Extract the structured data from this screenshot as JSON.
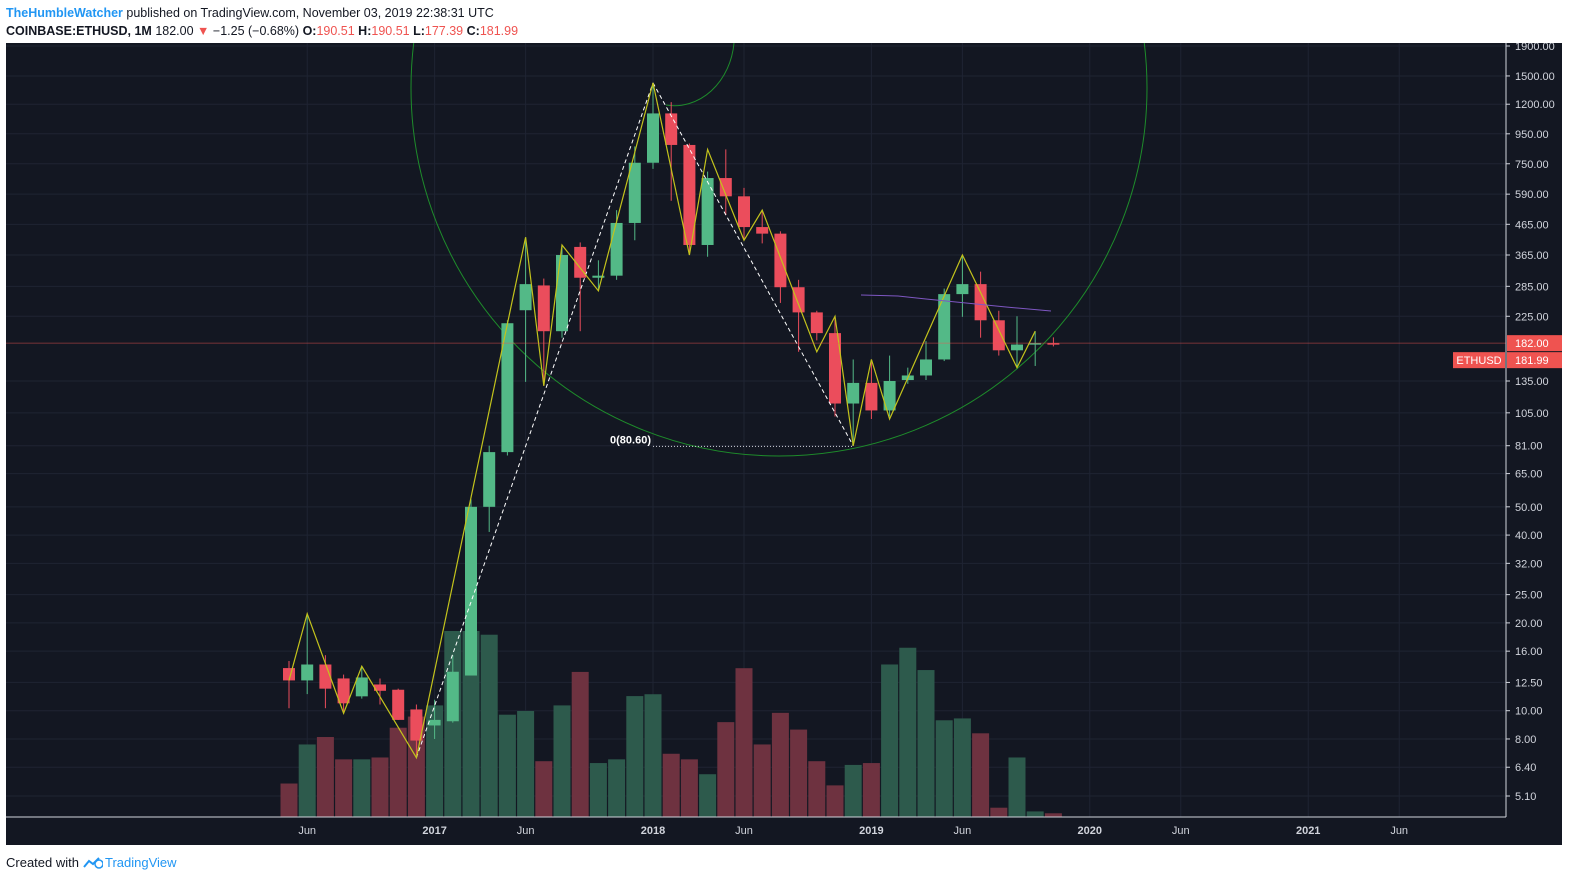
{
  "header": {
    "author": "TheHumbleWatcher",
    "published_text": "published on TradingView.com, November 03, 2019 22:38:31 UTC",
    "symbol": "COINBASE:ETHUSD, 1M",
    "price": "182.00",
    "change": "−1.25 (−0.68%)",
    "open_label": "O:",
    "open": "190.51",
    "high_label": "H:",
    "high": "190.51",
    "low_label": "L:",
    "low": "177.39",
    "close_label": "C:",
    "close": "181.99"
  },
  "footer": {
    "created_with": "Created with",
    "brand": "TradingView"
  },
  "chart_data": {
    "type": "candlestick",
    "symbol": "ETHUSD",
    "interval": "1M",
    "yscale": "log",
    "ylim": [
      3.5,
      2000
    ],
    "y_ticks": [
      "1900.00",
      "1500.00",
      "1200.00",
      "950.00",
      "750.00",
      "590.00",
      "465.00",
      "365.00",
      "285.00",
      "225.00",
      "135.00",
      "105.00",
      "81.00",
      "65.00",
      "50.00",
      "40.00",
      "32.00",
      "25.00",
      "20.00",
      "16.00",
      "12.50",
      "10.00",
      "8.00",
      "6.40",
      "5.10"
    ],
    "y_tick_values": [
      1900,
      1500,
      1200,
      950,
      750,
      590,
      465,
      365,
      285,
      225,
      135,
      105,
      81,
      65,
      50,
      40,
      32,
      25,
      20,
      16,
      12.5,
      10,
      8,
      6.4,
      5.1
    ],
    "x_ticks": [
      {
        "label": "Jun",
        "month": "2016-06"
      },
      {
        "label": "2017",
        "month": "2017-01"
      },
      {
        "label": "Jun",
        "month": "2017-06"
      },
      {
        "label": "2018",
        "month": "2018-01"
      },
      {
        "label": "Jun",
        "month": "2018-06"
      },
      {
        "label": "2019",
        "month": "2019-01"
      },
      {
        "label": "Jun",
        "month": "2019-06"
      },
      {
        "label": "2020",
        "month": "2020-01"
      },
      {
        "label": "Jun",
        "month": "2020-06"
      },
      {
        "label": "2021",
        "month": "2021-01"
      },
      {
        "label": "Jun",
        "month": "2021-06"
      }
    ],
    "x_ticks_bold": [
      "2017",
      "2018",
      "2019",
      "2020",
      "2021"
    ],
    "candles": [
      {
        "month": "2016-05",
        "open": 14.0,
        "high": 14.8,
        "low": 10.2,
        "close": 12.7
      },
      {
        "month": "2016-06",
        "open": 12.7,
        "high": 21.5,
        "low": 11.4,
        "close": 14.4
      },
      {
        "month": "2016-07",
        "open": 14.4,
        "high": 15.5,
        "low": 10.2,
        "close": 11.9
      },
      {
        "month": "2016-08",
        "open": 12.9,
        "high": 13.3,
        "low": 9.8,
        "close": 10.6
      },
      {
        "month": "2016-09",
        "open": 11.2,
        "high": 14.2,
        "low": 11.0,
        "close": 13.0
      },
      {
        "month": "2016-10",
        "open": 12.3,
        "high": 12.9,
        "low": 10.5,
        "close": 11.7
      },
      {
        "month": "2016-11",
        "open": 11.8,
        "high": 11.9,
        "low": 9.3,
        "close": 9.3
      },
      {
        "month": "2016-12",
        "open": 10.1,
        "high": 10.5,
        "low": 6.9,
        "close": 7.9
      },
      {
        "month": "2017-01",
        "open": 8.9,
        "high": 10.9,
        "low": 8.0,
        "close": 9.3
      },
      {
        "month": "2017-02",
        "open": 9.2,
        "high": 15.5,
        "low": 9.1,
        "close": 13.6
      },
      {
        "month": "2017-03",
        "open": 13.2,
        "high": 53.0,
        "low": 13.2,
        "close": 50.0
      },
      {
        "month": "2017-04",
        "open": 50.0,
        "high": 81.0,
        "low": 41.0,
        "close": 77.0
      },
      {
        "month": "2017-05",
        "open": 77.0,
        "high": 218.0,
        "low": 75.0,
        "close": 213.0
      },
      {
        "month": "2017-06",
        "open": 236.0,
        "high": 420.0,
        "low": 134.0,
        "close": 290.0
      },
      {
        "month": "2017-07",
        "open": 287.0,
        "high": 303.0,
        "low": 130.0,
        "close": 200.0
      },
      {
        "month": "2017-08",
        "open": 200.0,
        "high": 395.0,
        "low": 190.0,
        "close": 365.0
      },
      {
        "month": "2017-09",
        "open": 389.0,
        "high": 403.0,
        "low": 200.0,
        "close": 305.0
      },
      {
        "month": "2017-10",
        "open": 305.0,
        "high": 350.0,
        "low": 275.0,
        "close": 310.0
      },
      {
        "month": "2017-11",
        "open": 310.0,
        "high": 520.0,
        "low": 300.0,
        "close": 470.0
      },
      {
        "month": "2017-12",
        "open": 470.0,
        "high": 860.0,
        "low": 410.0,
        "close": 756.0
      },
      {
        "month": "2018-01",
        "open": 756.0,
        "high": 1420.0,
        "low": 720.0,
        "close": 1116.0
      },
      {
        "month": "2018-02",
        "open": 1116.0,
        "high": 1220.0,
        "low": 560.0,
        "close": 870.0
      },
      {
        "month": "2018-03",
        "open": 870.0,
        "high": 880.0,
        "low": 365.0,
        "close": 395.0
      },
      {
        "month": "2018-04",
        "open": 395.0,
        "high": 705.0,
        "low": 360.0,
        "close": 670.0
      },
      {
        "month": "2018-05",
        "open": 670.0,
        "high": 840.0,
        "low": 500.0,
        "close": 580.0
      },
      {
        "month": "2018-06",
        "open": 580.0,
        "high": 620.0,
        "low": 410.0,
        "close": 455.0
      },
      {
        "month": "2018-07",
        "open": 455.0,
        "high": 520.0,
        "low": 400.0,
        "close": 432.0
      },
      {
        "month": "2018-08",
        "open": 432.0,
        "high": 440.0,
        "low": 250.0,
        "close": 283.0
      },
      {
        "month": "2018-09",
        "open": 283.0,
        "high": 300.0,
        "low": 170.0,
        "close": 232.0
      },
      {
        "month": "2018-10",
        "open": 232.0,
        "high": 235.0,
        "low": 186.0,
        "close": 197.0
      },
      {
        "month": "2018-11",
        "open": 197.0,
        "high": 225.0,
        "low": 102.0,
        "close": 113.0
      },
      {
        "month": "2018-12",
        "open": 113.0,
        "high": 160.0,
        "low": 81.0,
        "close": 133.0
      },
      {
        "month": "2019-01",
        "open": 133.0,
        "high": 160.0,
        "low": 100.0,
        "close": 107.0
      },
      {
        "month": "2019-02",
        "open": 107.0,
        "high": 165.0,
        "low": 102.0,
        "close": 135.0
      },
      {
        "month": "2019-03",
        "open": 136.0,
        "high": 150.0,
        "low": 132.0,
        "close": 141.0
      },
      {
        "month": "2019-04",
        "open": 141.0,
        "high": 185.0,
        "low": 136.0,
        "close": 160.0
      },
      {
        "month": "2019-05",
        "open": 160.0,
        "high": 280.0,
        "low": 158.0,
        "close": 268.0
      },
      {
        "month": "2019-06",
        "open": 268.0,
        "high": 365.0,
        "low": 224.0,
        "close": 290.0
      },
      {
        "month": "2019-07",
        "open": 290.0,
        "high": 320.0,
        "low": 190.0,
        "close": 218.0
      },
      {
        "month": "2019-08",
        "open": 218.0,
        "high": 235.0,
        "low": 165.0,
        "close": 172.0
      },
      {
        "month": "2019-09",
        "open": 172.0,
        "high": 225.0,
        "low": 150.0,
        "close": 180.0
      },
      {
        "month": "2019-10",
        "open": 180.0,
        "high": 200.0,
        "low": 152.0,
        "close": 182.0
      },
      {
        "month": "2019-11",
        "open": 182.0,
        "high": 190.51,
        "low": 177.39,
        "close": 181.99
      }
    ],
    "volume_relative": [
      0.18,
      0.39,
      0.43,
      0.31,
      0.31,
      0.32,
      0.48,
      0.54,
      0.6,
      1.0,
      1.0,
      0.98,
      0.55,
      0.57,
      0.3,
      0.6,
      0.78,
      0.29,
      0.31,
      0.65,
      0.66,
      0.34,
      0.31,
      0.23,
      0.51,
      0.8,
      0.39,
      0.56,
      0.47,
      0.3,
      0.17,
      0.28,
      0.29,
      0.82,
      0.91,
      0.79,
      0.52,
      0.53,
      0.45,
      0.05,
      0.32,
      0.03,
      0.02
    ],
    "zigzag": [
      {
        "month": "2016-05",
        "price": 12.7
      },
      {
        "month": "2016-06",
        "price": 21.5
      },
      {
        "month": "2016-08",
        "price": 9.8
      },
      {
        "month": "2016-09",
        "price": 14.2
      },
      {
        "month": "2016-12",
        "price": 6.9
      },
      {
        "month": "2017-06",
        "price": 420.0
      },
      {
        "month": "2017-07",
        "price": 130.0
      },
      {
        "month": "2017-08",
        "price": 395.0
      },
      {
        "month": "2017-10",
        "price": 275.0
      },
      {
        "month": "2018-01",
        "price": 1420.0
      },
      {
        "month": "2018-03",
        "price": 365.0
      },
      {
        "month": "2018-04",
        "price": 840.0
      },
      {
        "month": "2018-06",
        "price": 410.0
      },
      {
        "month": "2018-07",
        "price": 520.0
      },
      {
        "month": "2018-10",
        "price": 170.0
      },
      {
        "month": "2018-11",
        "price": 225.0
      },
      {
        "month": "2018-12",
        "price": 81.0
      },
      {
        "month": "2019-01",
        "price": 160.0
      },
      {
        "month": "2019-02",
        "price": 100.0
      },
      {
        "month": "2019-06",
        "price": 365.0
      },
      {
        "month": "2019-09",
        "price": 150.0
      },
      {
        "month": "2019-10",
        "price": 200.0
      }
    ],
    "fib_lines": [
      {
        "from": {
          "month": "2016-12",
          "price": 6.9
        },
        "to": {
          "month": "2018-01",
          "price": 1420.0
        }
      },
      {
        "from": {
          "month": "2018-01",
          "price": 1420.0
        },
        "to": {
          "month": "2018-12",
          "price": 81.0
        }
      }
    ],
    "annotation": {
      "text": "0(80.60)",
      "price": 80.6,
      "from_month": "2018-01",
      "to_month": "2018-12"
    },
    "last_price_lines": [
      182.0
    ],
    "price_labels": [
      {
        "text": "182.00",
        "price": 182.0,
        "color": "#ef5350"
      },
      {
        "text": "ETHUSD",
        "value_text": "181.99",
        "price": 181.99,
        "color": "#ef5350"
      }
    ],
    "colors": {
      "up": "#53b987",
      "down": "#eb4d5c",
      "vol_up": "#2d5a4c",
      "vol_down": "#6e3240",
      "zigzag": "#c3c31c",
      "circle": "#1e8c2b",
      "grid": "#1f2433"
    }
  }
}
